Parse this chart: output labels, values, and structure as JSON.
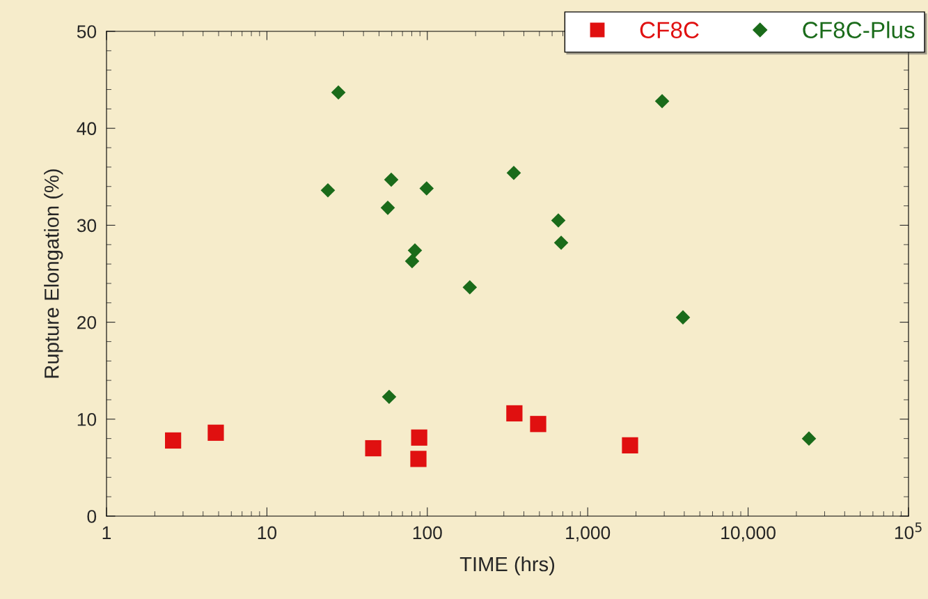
{
  "chart_data": {
    "type": "scatter",
    "xlabel": "TIME (hrs)",
    "ylabel": "Rupture Elongation (%)",
    "log": "x",
    "xlim": [
      1,
      100000
    ],
    "ylim": [
      0,
      50
    ],
    "xticks": [
      1,
      10,
      100,
      {
        "value": 1000,
        "label": "1,000"
      },
      {
        "value": 10000,
        "label": "10,000"
      },
      {
        "value": 100000,
        "label": "10$^{5}$"
      }
    ],
    "yticks": [
      0,
      10,
      20,
      30,
      40,
      50
    ],
    "grid": false,
    "legend": "top right",
    "series": [
      {
        "name": "CF8C",
        "color": "#e01010",
        "marker": "square",
        "x": [
          2.6,
          4.8,
          46,
          89,
          88,
          349,
          491,
          1836
        ],
        "values": [
          7.8,
          8.6,
          7.0,
          8.1,
          5.9,
          10.6,
          9.5,
          7.3
        ]
      },
      {
        "name": "CF8C-Plus",
        "color": "#1a6b1a",
        "marker": "diamond",
        "x": [
          27.9,
          24,
          59.6,
          56.7,
          99,
          83.7,
          80.4,
          184,
          346,
          656,
          683,
          2910,
          3925,
          57.8,
          23950
        ],
        "values": [
          43.7,
          33.6,
          34.7,
          31.8,
          33.8,
          27.4,
          26.3,
          23.6,
          35.4,
          30.5,
          28.2,
          42.8,
          20.5,
          12.3,
          8.0
        ]
      }
    ]
  }
}
